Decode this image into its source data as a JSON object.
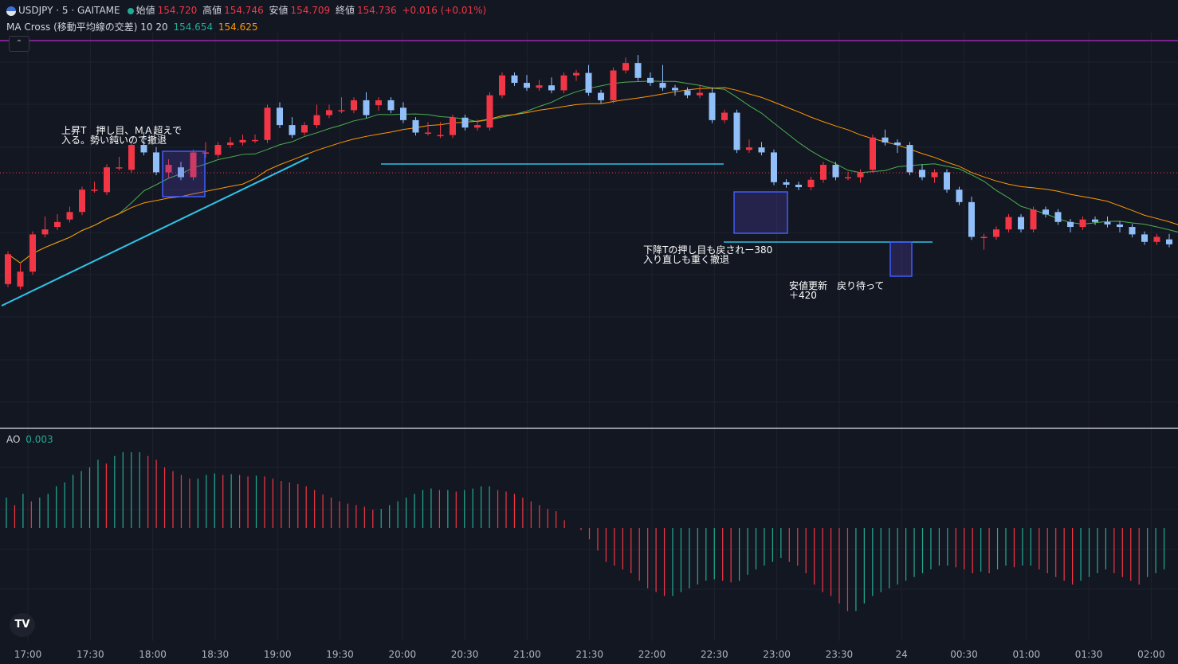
{
  "header": {
    "symbol": "USDJPY · 5 · GAITAME",
    "open_label": "始値",
    "open": "154.720",
    "high_label": "高値",
    "high": "154.746",
    "low_label": "安値",
    "low": "154.709",
    "close_label": "終値",
    "close": "154.736",
    "change": "+0.016 (+0.01%)"
  },
  "indicator": {
    "name": "MA Cross (移動平均線の交差) 10 20",
    "ma_fast": "154.654",
    "ma_slow": "154.625"
  },
  "ao": {
    "name": "AO",
    "value": "0.003"
  },
  "annotations": {
    "a1": "上昇T　押し目、ＭＡ超えで\n入る。勢い鈍いので撤退",
    "a2": "下降Tの押し目も戻されー380\n入り直しも重く撤退",
    "a3": "安値更新　戻り待って\n＋420"
  },
  "logo": "TV",
  "colors": {
    "up": "#f23645",
    "down": "#90bff9",
    "ma_fast": "#4caf50",
    "ma_slow": "#ff9800",
    "trend": "#2ec4e6",
    "resistance": "#9c27b0"
  },
  "chart_data": {
    "type": "candlestick",
    "xaxis_labels": [
      "17:00",
      "17:30",
      "18:00",
      "18:30",
      "19:00",
      "19:30",
      "20:00",
      "20:30",
      "21:00",
      "21:30",
      "22:00",
      "22:30",
      "23:00",
      "23:30",
      "24",
      "00:30",
      "01:00",
      "01:30",
      "02:00"
    ],
    "candles": [
      [
        10,
        12,
        22,
        22
      ],
      [
        9,
        9,
        17,
        15
      ],
      [
        15,
        18,
        30,
        30
      ],
      [
        30,
        34,
        36,
        32
      ],
      [
        33,
        34,
        37,
        35
      ],
      [
        36,
        36,
        40,
        39
      ],
      [
        39,
        39,
        48,
        48
      ],
      [
        48,
        50,
        50,
        48
      ],
      [
        47,
        49,
        57,
        57
      ],
      [
        57,
        57,
        60,
        57
      ],
      [
        56,
        58,
        66,
        66
      ],
      [
        66,
        67,
        70,
        63
      ],
      [
        63,
        62,
        64,
        55
      ],
      [
        55,
        54,
        59,
        58
      ],
      [
        57,
        58,
        58,
        53
      ],
      [
        53,
        53,
        63,
        63
      ],
      [
        63,
        62,
        66,
        63
      ],
      [
        62,
        62,
        66,
        66
      ],
      [
        66,
        66,
        68,
        67
      ],
      [
        67,
        67,
        69,
        68
      ],
      [
        68,
        69,
        69,
        68
      ],
      [
        68,
        70,
        81,
        81
      ],
      [
        81,
        82,
        82,
        74
      ],
      [
        74,
        74,
        76,
        70
      ],
      [
        71,
        71,
        74,
        74
      ],
      [
        74,
        76,
        81,
        78
      ],
      [
        78,
        78,
        81,
        80
      ],
      [
        80,
        80,
        84,
        80
      ],
      [
        80,
        81,
        84,
        84
      ],
      [
        84,
        84,
        86,
        78
      ],
      [
        82,
        81,
        84,
        84
      ],
      [
        84,
        84,
        84,
        80
      ],
      [
        81,
        80,
        82,
        76
      ],
      [
        76,
        76,
        76,
        71
      ],
      [
        71,
        71,
        74,
        71
      ],
      [
        70,
        74,
        74,
        70
      ],
      [
        70,
        73,
        77,
        77
      ],
      [
        77,
        77,
        77,
        73
      ],
      [
        73,
        75,
        75,
        74
      ],
      [
        73,
        74,
        86,
        86
      ],
      [
        86,
        86,
        94,
        94
      ],
      [
        94,
        92,
        94,
        91
      ],
      [
        91,
        91,
        93,
        89
      ],
      [
        89,
        90,
        91,
        90
      ],
      [
        90,
        89,
        92,
        88
      ],
      [
        88,
        88,
        94,
        94
      ],
      [
        94,
        93,
        95,
        95
      ],
      [
        95,
        92,
        97,
        87
      ],
      [
        87,
        87,
        87,
        84
      ],
      [
        84,
        85,
        96,
        96
      ],
      [
        96,
        98,
        100,
        99
      ],
      [
        99,
        99,
        101,
        93
      ],
      [
        93,
        94,
        94,
        91
      ],
      [
        91,
        91,
        97,
        89
      ],
      [
        89,
        87,
        89,
        88
      ],
      [
        88,
        88,
        88,
        86
      ],
      [
        86,
        87,
        89,
        87
      ],
      [
        87,
        86,
        88,
        76
      ],
      [
        76,
        76,
        79,
        79
      ],
      [
        79,
        77,
        79,
        64
      ],
      [
        64,
        64,
        67,
        65
      ],
      [
        65,
        66,
        66,
        63
      ],
      [
        63,
        61,
        61,
        51
      ],
      [
        51,
        51,
        50,
        50
      ],
      [
        50,
        50,
        50,
        49
      ],
      [
        49,
        49,
        52,
        52
      ],
      [
        52,
        53,
        58,
        58
      ],
      [
        58,
        57,
        58,
        53
      ],
      [
        53,
        53,
        54,
        53
      ],
      [
        53,
        52,
        52,
        55
      ],
      [
        56,
        58,
        69,
        69
      ],
      [
        69,
        71,
        71,
        67
      ],
      [
        67,
        64,
        66,
        66
      ],
      [
        66,
        62,
        66,
        55
      ],
      [
        56,
        55,
        57,
        53
      ],
      [
        53,
        52,
        52,
        55
      ],
      [
        55,
        55,
        54,
        48
      ],
      [
        48,
        48,
        48,
        43
      ],
      [
        43,
        44,
        43,
        29
      ],
      [
        29,
        25,
        28,
        29
      ],
      [
        29,
        32,
        32,
        32
      ],
      [
        32,
        33,
        37,
        37
      ],
      [
        37,
        37,
        32,
        32
      ],
      [
        32,
        35,
        40,
        40
      ],
      [
        40,
        39,
        39,
        38
      ],
      [
        39,
        37,
        37,
        35
      ],
      [
        35,
        32,
        33,
        33
      ],
      [
        33,
        33,
        36,
        36
      ],
      [
        36,
        36,
        36,
        35
      ],
      [
        35,
        35,
        36,
        34
      ],
      [
        34,
        32,
        32,
        33
      ],
      [
        33,
        32,
        32,
        30
      ],
      [
        30,
        27,
        27,
        27
      ],
      [
        27,
        27,
        29,
        29
      ],
      [
        28,
        27,
        29,
        26
      ],
      [
        26,
        26,
        27,
        23
      ],
      [
        23,
        21,
        24,
        24
      ],
      [
        24,
        24,
        24,
        21
      ],
      [
        21,
        20,
        20,
        20
      ]
    ],
    "ao_values": [
      0.04,
      0.03,
      0.045,
      0.035,
      0.04,
      0.045,
      0.055,
      0.06,
      0.07,
      0.075,
      0.08,
      0.09,
      0.085,
      0.095,
      0.1,
      0.1,
      0.1,
      0.095,
      0.09,
      0.08,
      0.075,
      0.07,
      0.065,
      0.065,
      0.07,
      0.072,
      0.07,
      0.071,
      0.07,
      0.068,
      0.069,
      0.068,
      0.065,
      0.062,
      0.06,
      0.058,
      0.055,
      0.05,
      0.044,
      0.04,
      0.035,
      0.032,
      0.03,
      0.028,
      0.024,
      0.025,
      0.03,
      0.035,
      0.04,
      0.045,
      0.05,
      0.052,
      0.05,
      0.05,
      0.048,
      0.05,
      0.052,
      0.055,
      0.055,
      0.05,
      0.048,
      0.045,
      0.04,
      0.035,
      0.03,
      0.025,
      0.022,
      0.01,
      0.0,
      -0.003,
      -0.015,
      -0.03,
      -0.045,
      -0.05,
      -0.055,
      -0.06,
      -0.07,
      -0.08,
      -0.085,
      -0.09,
      -0.09,
      -0.085,
      -0.08,
      -0.075,
      -0.07,
      -0.068,
      -0.07,
      -0.072,
      -0.07,
      -0.062,
      -0.055,
      -0.05,
      -0.045,
      -0.04,
      -0.045,
      -0.05,
      -0.06,
      -0.075,
      -0.085,
      -0.09,
      -0.1,
      -0.11,
      -0.11,
      -0.1,
      -0.09,
      -0.085,
      -0.08,
      -0.075,
      -0.07,
      -0.065,
      -0.06,
      -0.055,
      -0.05,
      -0.05,
      -0.052,
      -0.055,
      -0.06,
      -0.058,
      -0.06,
      -0.055,
      -0.05,
      -0.052,
      -0.05,
      -0.05,
      -0.055,
      -0.06,
      -0.065,
      -0.07,
      -0.075,
      -0.07,
      -0.065,
      -0.06,
      -0.055,
      -0.06,
      -0.065,
      -0.07,
      -0.075,
      -0.065,
      -0.06,
      -0.055
    ]
  }
}
